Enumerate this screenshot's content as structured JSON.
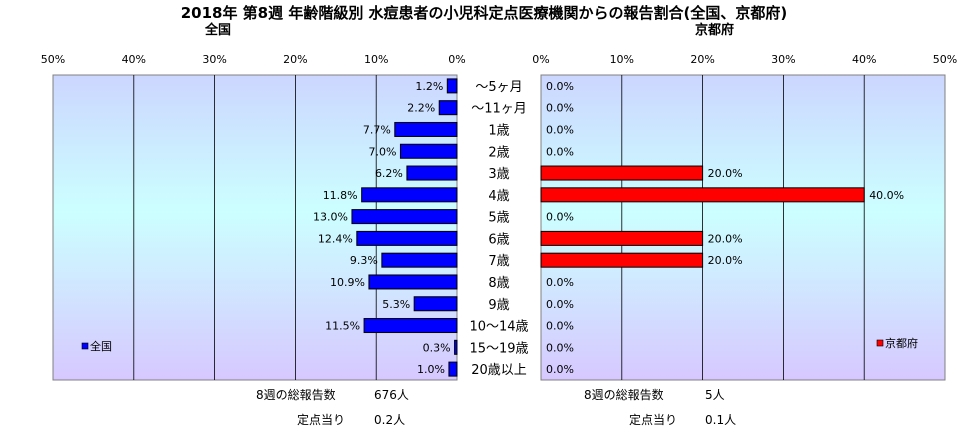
{
  "title": "2018年 第8週 年齢階級別 水痘患者の小児科定点医療機関からの報告割合(全国、京都府)",
  "chart_data": [
    {
      "type": "bar",
      "orientation": "horizontal",
      "title": "全国",
      "categories": [
        "～5ヶ月",
        "～11ヶ月",
        "1歳",
        "2歳",
        "3歳",
        "4歳",
        "5歳",
        "6歳",
        "7歳",
        "8歳",
        "9歳",
        "10～14歳",
        "15～19歳",
        "20歳以上"
      ],
      "series": [
        {
          "name": "全国",
          "values": [
            1.2,
            2.2,
            7.7,
            7.0,
            6.2,
            11.8,
            13.0,
            12.4,
            9.3,
            10.9,
            5.3,
            11.5,
            0.3,
            1.0
          ],
          "color": "#0000ff"
        }
      ],
      "data_labels": [
        "1.2%",
        "2.2%",
        "7.7%",
        "7.0%",
        "6.2%",
        "11.8%",
        "13.0%",
        "12.4%",
        "9.3%",
        "10.9%",
        "5.3%",
        "11.5%",
        "0.3%",
        "1.0%"
      ],
      "xlim": [
        0,
        50
      ],
      "x_reversed": true,
      "ticks": [
        "50%",
        "40%",
        "30%",
        "20%",
        "10%",
        "0%"
      ],
      "legend": "bottom-left",
      "grid": true
    },
    {
      "type": "bar",
      "orientation": "horizontal",
      "title": "京都府",
      "categories": [
        "～5ヶ月",
        "～11ヶ月",
        "1歳",
        "2歳",
        "3歳",
        "4歳",
        "5歳",
        "6歳",
        "7歳",
        "8歳",
        "9歳",
        "10～14歳",
        "15～19歳",
        "20歳以上"
      ],
      "series": [
        {
          "name": "京都府",
          "values": [
            0,
            0,
            0,
            0,
            20.0,
            40.0,
            0,
            20.0,
            20.0,
            0,
            0,
            0,
            0,
            0
          ],
          "color": "#ff0000"
        }
      ],
      "data_labels": [
        "0.0%",
        "0.0%",
        "0.0%",
        "0.0%",
        "20.0%",
        "40.0%",
        "0.0%",
        "20.0%",
        "20.0%",
        "0.0%",
        "0.0%",
        "0.0%",
        "0.0%",
        "0.0%"
      ],
      "xlim": [
        0,
        50
      ],
      "ticks": [
        "0%",
        "10%",
        "20%",
        "30%",
        "40%",
        "50%"
      ],
      "legend": "bottom-right",
      "grid": true
    }
  ],
  "stats": {
    "national": {
      "total_label": "8週の総報告数",
      "total_value": "676人",
      "per_label": "定点当り",
      "per_value": "0.2人"
    },
    "kyoto": {
      "total_label": "8週の総報告数",
      "total_value": "5人",
      "per_label": "定点当り",
      "per_value": "0.1人"
    }
  }
}
